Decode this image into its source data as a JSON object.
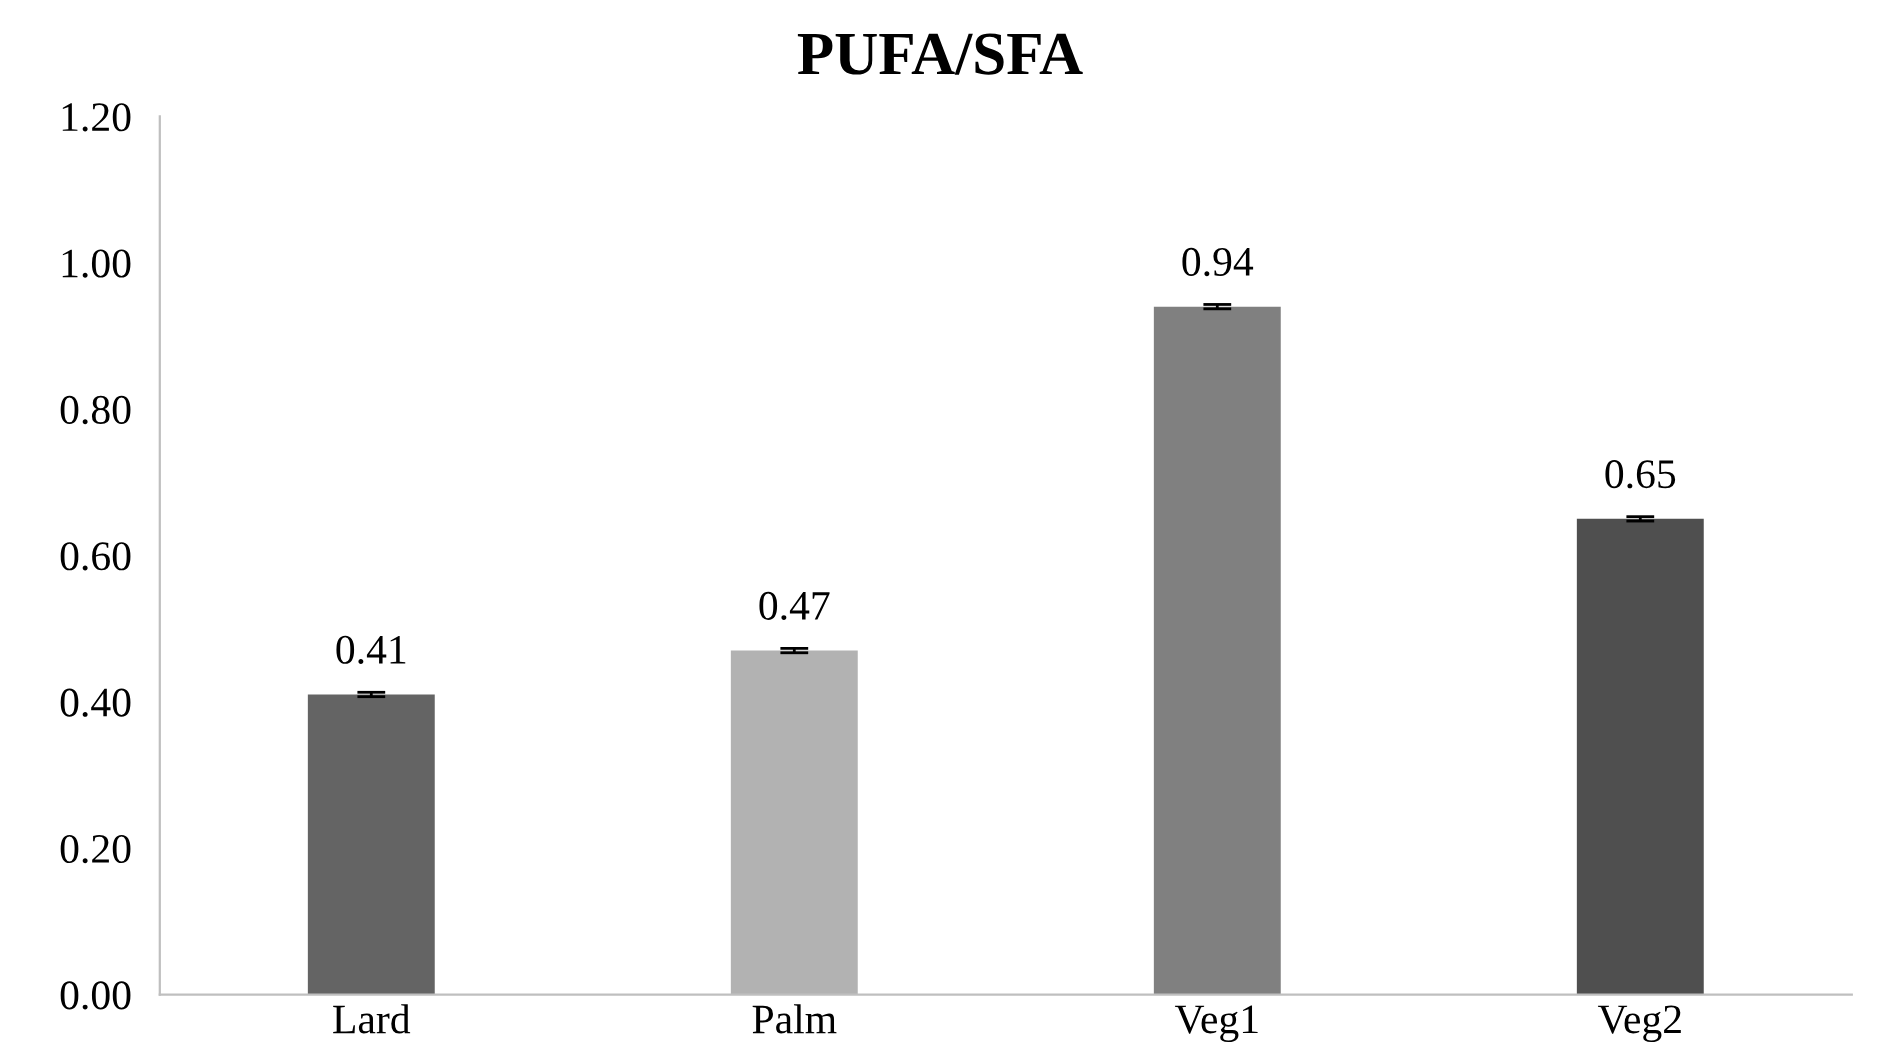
{
  "chart_data": {
    "type": "bar",
    "title": "PUFA/SFA",
    "categories": [
      "Lard",
      "Palm",
      "Veg1",
      "Veg2"
    ],
    "values": [
      0.41,
      0.47,
      0.94,
      0.65
    ],
    "colors": [
      "#646464",
      "#b2b2b2",
      "#808080",
      "#4f4f4f"
    ],
    "errors": [
      0.003,
      0.003,
      0.003,
      0.003
    ],
    "data_labels": true,
    "ylim": [
      0,
      1.2
    ],
    "yticks": [
      {
        "value": 0,
        "label": "0.00"
      },
      {
        "value": 0.2,
        "label": "0.20"
      },
      {
        "value": 0.4,
        "label": "0.40"
      },
      {
        "value": 0.6,
        "label": "0.60"
      },
      {
        "value": 0.8,
        "label": "0.80"
      },
      {
        "value": 1.0,
        "label": "1.00"
      },
      {
        "value": 1.2,
        "label": "1.20"
      }
    ],
    "grid": false,
    "legend": false
  }
}
